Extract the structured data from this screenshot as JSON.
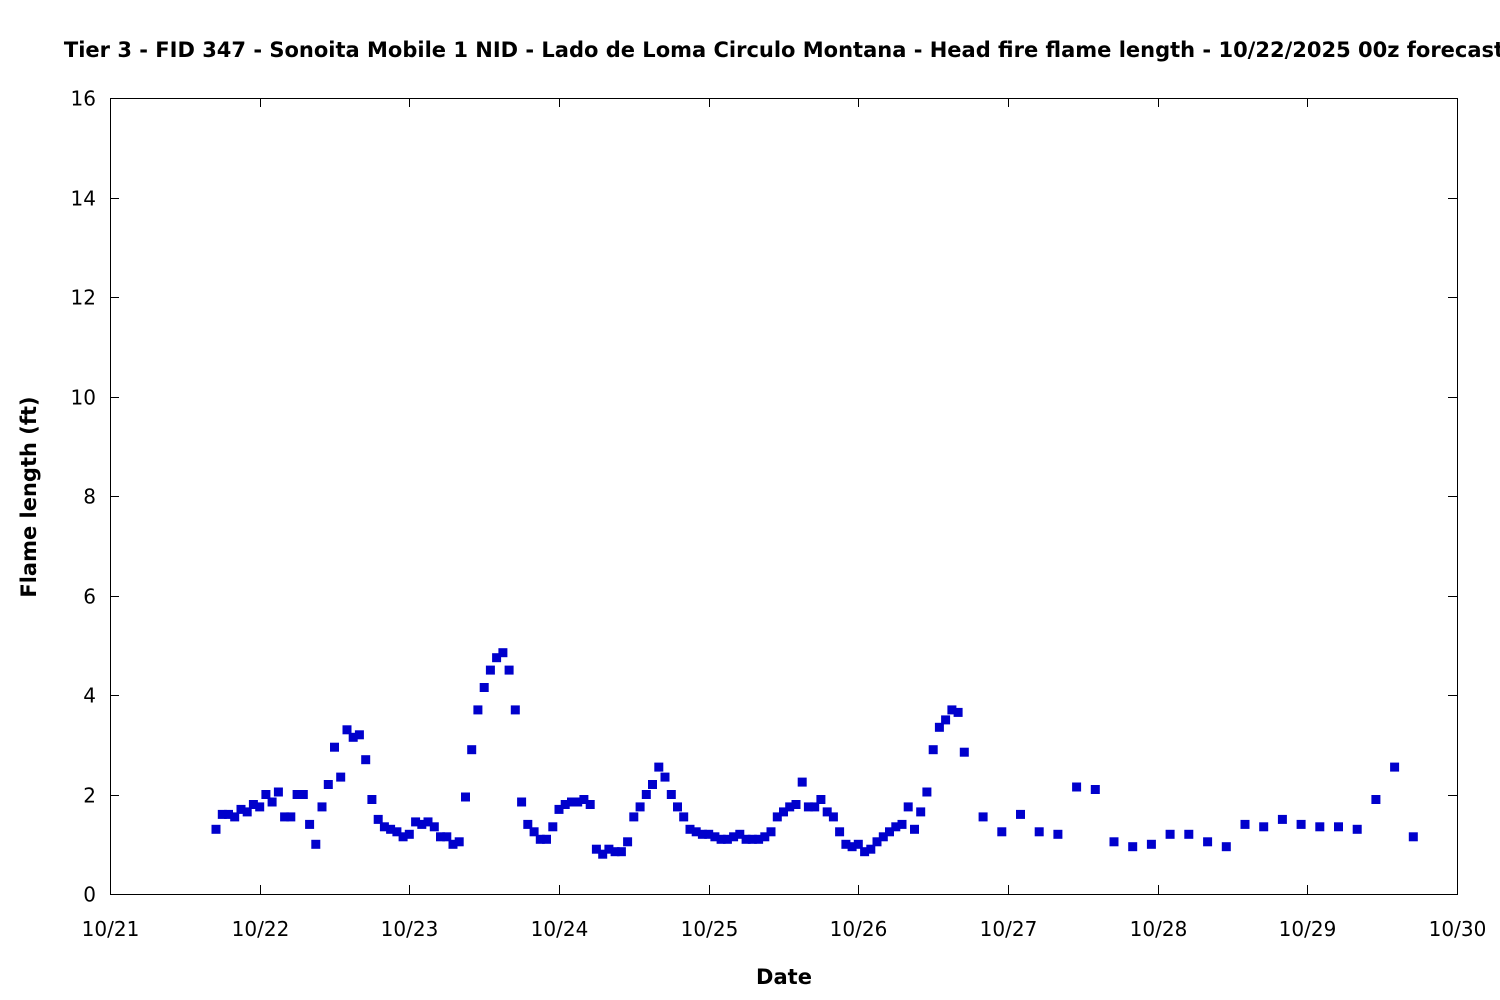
{
  "chart_data": {
    "type": "scatter",
    "title": "Tier 3 - FID 347 - Sonoita Mobile 1 NID - Lado de Loma Circulo Montana - Head fire flame length - 10/22/2025 00z forecast",
    "xlabel": "Date",
    "ylabel": "Flame length (ft)",
    "xlim": [
      "2025-10-21T00:00",
      "2025-10-30T00:00"
    ],
    "ylim": [
      0,
      16
    ],
    "x_ticks": [
      "10/21",
      "10/22",
      "10/23",
      "10/24",
      "10/25",
      "10/26",
      "10/27",
      "10/28",
      "10/29",
      "10/30"
    ],
    "y_ticks": [
      "0",
      "2",
      "4",
      "6",
      "8",
      "10",
      "12",
      "14",
      "16"
    ],
    "grid": false,
    "legend": "none",
    "marker_color": "#0000cc",
    "points": [
      [
        "2025-10-21T17:00",
        1.3
      ],
      [
        "2025-10-21T18:00",
        1.6
      ],
      [
        "2025-10-21T19:00",
        1.6
      ],
      [
        "2025-10-21T20:00",
        1.55
      ],
      [
        "2025-10-21T21:00",
        1.7
      ],
      [
        "2025-10-21T22:00",
        1.65
      ],
      [
        "2025-10-21T23:00",
        1.8
      ],
      [
        "2025-10-22T00:00",
        1.75
      ],
      [
        "2025-10-22T01:00",
        2.0
      ],
      [
        "2025-10-22T02:00",
        1.85
      ],
      [
        "2025-10-22T03:00",
        2.05
      ],
      [
        "2025-10-22T04:00",
        1.55
      ],
      [
        "2025-10-22T05:00",
        1.55
      ],
      [
        "2025-10-22T06:00",
        2.0
      ],
      [
        "2025-10-22T07:00",
        2.0
      ],
      [
        "2025-10-22T08:00",
        1.4
      ],
      [
        "2025-10-22T09:00",
        1.0
      ],
      [
        "2025-10-22T10:00",
        1.75
      ],
      [
        "2025-10-22T11:00",
        2.2
      ],
      [
        "2025-10-22T12:00",
        2.95
      ],
      [
        "2025-10-22T13:00",
        2.35
      ],
      [
        "2025-10-22T14:00",
        3.3
      ],
      [
        "2025-10-22T15:00",
        3.15
      ],
      [
        "2025-10-22T16:00",
        3.2
      ],
      [
        "2025-10-22T17:00",
        2.7
      ],
      [
        "2025-10-22T18:00",
        1.9
      ],
      [
        "2025-10-22T19:00",
        1.5
      ],
      [
        "2025-10-22T20:00",
        1.35
      ],
      [
        "2025-10-22T21:00",
        1.3
      ],
      [
        "2025-10-22T22:00",
        1.25
      ],
      [
        "2025-10-22T23:00",
        1.15
      ],
      [
        "2025-10-23T00:00",
        1.2
      ],
      [
        "2025-10-23T01:00",
        1.45
      ],
      [
        "2025-10-23T02:00",
        1.4
      ],
      [
        "2025-10-23T03:00",
        1.45
      ],
      [
        "2025-10-23T04:00",
        1.35
      ],
      [
        "2025-10-23T05:00",
        1.15
      ],
      [
        "2025-10-23T06:00",
        1.15
      ],
      [
        "2025-10-23T07:00",
        1.0
      ],
      [
        "2025-10-23T08:00",
        1.05
      ],
      [
        "2025-10-23T09:00",
        1.95
      ],
      [
        "2025-10-23T10:00",
        2.9
      ],
      [
        "2025-10-23T11:00",
        3.7
      ],
      [
        "2025-10-23T12:00",
        4.15
      ],
      [
        "2025-10-23T13:00",
        4.5
      ],
      [
        "2025-10-23T14:00",
        4.75
      ],
      [
        "2025-10-23T15:00",
        4.85
      ],
      [
        "2025-10-23T16:00",
        4.5
      ],
      [
        "2025-10-23T17:00",
        3.7
      ],
      [
        "2025-10-23T18:00",
        1.85
      ],
      [
        "2025-10-23T19:00",
        1.4
      ],
      [
        "2025-10-23T20:00",
        1.25
      ],
      [
        "2025-10-23T21:00",
        1.1
      ],
      [
        "2025-10-23T22:00",
        1.1
      ],
      [
        "2025-10-23T23:00",
        1.35
      ],
      [
        "2025-10-24T00:00",
        1.7
      ],
      [
        "2025-10-24T01:00",
        1.8
      ],
      [
        "2025-10-24T02:00",
        1.85
      ],
      [
        "2025-10-24T03:00",
        1.85
      ],
      [
        "2025-10-24T04:00",
        1.9
      ],
      [
        "2025-10-24T05:00",
        1.8
      ],
      [
        "2025-10-24T06:00",
        0.9
      ],
      [
        "2025-10-24T07:00",
        0.8
      ],
      [
        "2025-10-24T08:00",
        0.9
      ],
      [
        "2025-10-24T09:00",
        0.85
      ],
      [
        "2025-10-24T10:00",
        0.85
      ],
      [
        "2025-10-24T11:00",
        1.05
      ],
      [
        "2025-10-24T12:00",
        1.55
      ],
      [
        "2025-10-24T13:00",
        1.75
      ],
      [
        "2025-10-24T14:00",
        2.0
      ],
      [
        "2025-10-24T15:00",
        2.2
      ],
      [
        "2025-10-24T16:00",
        2.55
      ],
      [
        "2025-10-24T17:00",
        2.35
      ],
      [
        "2025-10-24T18:00",
        2.0
      ],
      [
        "2025-10-24T19:00",
        1.75
      ],
      [
        "2025-10-24T20:00",
        1.55
      ],
      [
        "2025-10-24T21:00",
        1.3
      ],
      [
        "2025-10-24T22:00",
        1.25
      ],
      [
        "2025-10-24T23:00",
        1.2
      ],
      [
        "2025-10-25T00:00",
        1.2
      ],
      [
        "2025-10-25T01:00",
        1.15
      ],
      [
        "2025-10-25T02:00",
        1.1
      ],
      [
        "2025-10-25T03:00",
        1.1
      ],
      [
        "2025-10-25T04:00",
        1.15
      ],
      [
        "2025-10-25T05:00",
        1.2
      ],
      [
        "2025-10-25T06:00",
        1.1
      ],
      [
        "2025-10-25T07:00",
        1.1
      ],
      [
        "2025-10-25T08:00",
        1.1
      ],
      [
        "2025-10-25T09:00",
        1.15
      ],
      [
        "2025-10-25T10:00",
        1.25
      ],
      [
        "2025-10-25T11:00",
        1.55
      ],
      [
        "2025-10-25T12:00",
        1.65
      ],
      [
        "2025-10-25T13:00",
        1.75
      ],
      [
        "2025-10-25T14:00",
        1.8
      ],
      [
        "2025-10-25T15:00",
        2.25
      ],
      [
        "2025-10-25T16:00",
        1.75
      ],
      [
        "2025-10-25T17:00",
        1.75
      ],
      [
        "2025-10-25T18:00",
        1.9
      ],
      [
        "2025-10-25T19:00",
        1.65
      ],
      [
        "2025-10-25T20:00",
        1.55
      ],
      [
        "2025-10-25T21:00",
        1.25
      ],
      [
        "2025-10-25T22:00",
        1.0
      ],
      [
        "2025-10-25T23:00",
        0.95
      ],
      [
        "2025-10-26T00:00",
        1.0
      ],
      [
        "2025-10-26T01:00",
        0.85
      ],
      [
        "2025-10-26T02:00",
        0.9
      ],
      [
        "2025-10-26T03:00",
        1.05
      ],
      [
        "2025-10-26T04:00",
        1.15
      ],
      [
        "2025-10-26T05:00",
        1.25
      ],
      [
        "2025-10-26T06:00",
        1.35
      ],
      [
        "2025-10-26T07:00",
        1.4
      ],
      [
        "2025-10-26T08:00",
        1.75
      ],
      [
        "2025-10-26T09:00",
        1.3
      ],
      [
        "2025-10-26T10:00",
        1.65
      ],
      [
        "2025-10-26T11:00",
        2.05
      ],
      [
        "2025-10-26T12:00",
        2.9
      ],
      [
        "2025-10-26T13:00",
        3.35
      ],
      [
        "2025-10-26T14:00",
        3.5
      ],
      [
        "2025-10-26T15:00",
        3.7
      ],
      [
        "2025-10-26T16:00",
        3.65
      ],
      [
        "2025-10-26T17:00",
        2.85
      ],
      [
        "2025-10-26T20:00",
        1.55
      ],
      [
        "2025-10-26T23:00",
        1.25
      ],
      [
        "2025-10-27T02:00",
        1.6
      ],
      [
        "2025-10-27T05:00",
        1.25
      ],
      [
        "2025-10-27T08:00",
        1.2
      ],
      [
        "2025-10-27T11:00",
        2.15
      ],
      [
        "2025-10-27T14:00",
        2.1
      ],
      [
        "2025-10-27T17:00",
        1.05
      ],
      [
        "2025-10-27T20:00",
        0.95
      ],
      [
        "2025-10-27T23:00",
        1.0
      ],
      [
        "2025-10-28T02:00",
        1.2
      ],
      [
        "2025-10-28T05:00",
        1.2
      ],
      [
        "2025-10-28T08:00",
        1.05
      ],
      [
        "2025-10-28T11:00",
        0.95
      ],
      [
        "2025-10-28T14:00",
        1.4
      ],
      [
        "2025-10-28T17:00",
        1.35
      ],
      [
        "2025-10-28T20:00",
        1.5
      ],
      [
        "2025-10-28T23:00",
        1.4
      ],
      [
        "2025-10-29T02:00",
        1.35
      ],
      [
        "2025-10-29T05:00",
        1.35
      ],
      [
        "2025-10-29T08:00",
        1.3
      ],
      [
        "2025-10-29T11:00",
        1.9
      ],
      [
        "2025-10-29T14:00",
        2.55
      ],
      [
        "2025-10-29T17:00",
        1.15
      ]
    ]
  }
}
